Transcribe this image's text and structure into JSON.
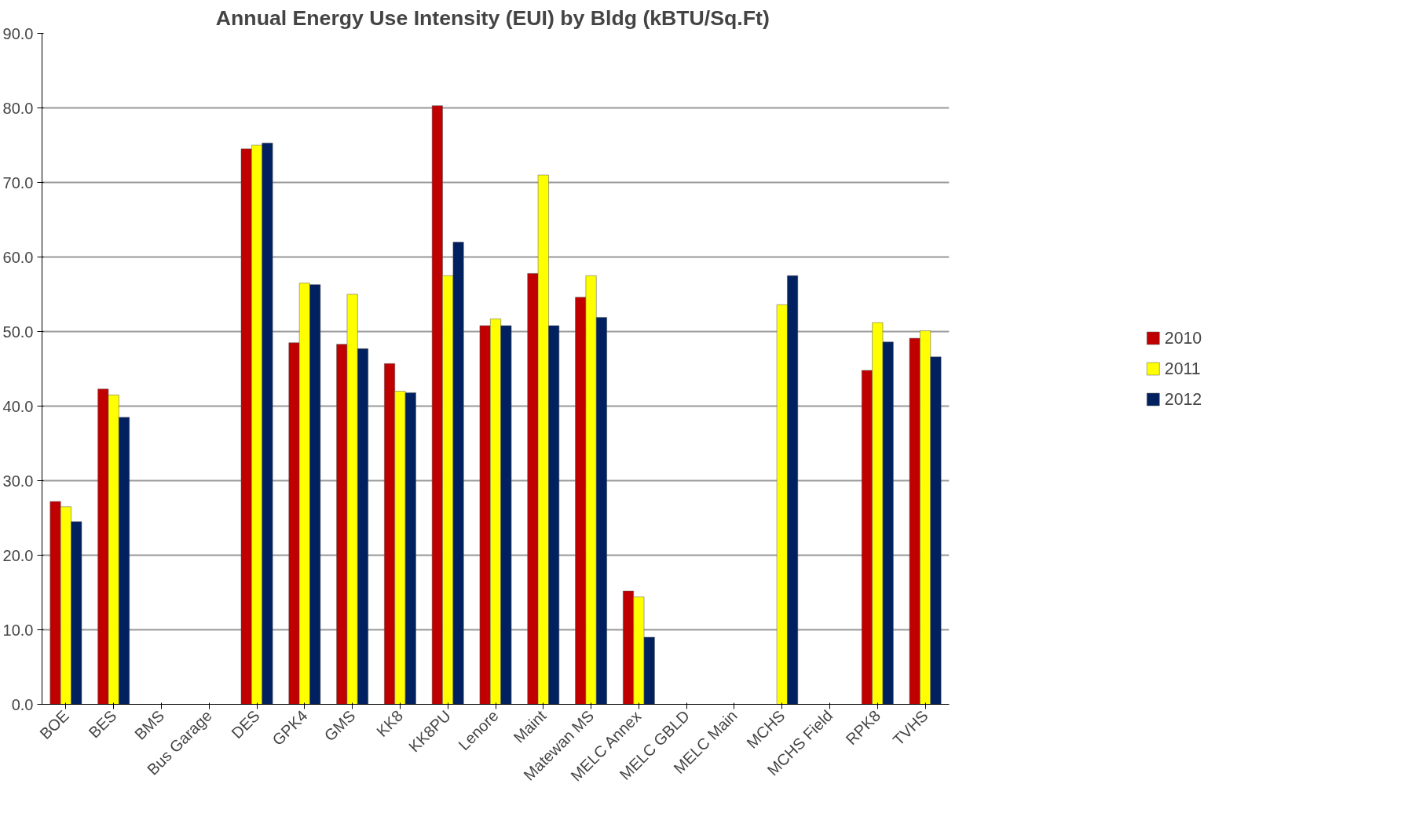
{
  "chart_data": {
    "type": "bar",
    "title": "Annual Energy Use Intensity (EUI)  by Bldg (kBTU/Sq.Ft)",
    "categories": [
      "BOE",
      "BES",
      "BMS",
      "Bus Garage",
      "DES",
      "GPK4",
      "GMS",
      "KK8",
      "KK8PU",
      "Lenore",
      "Maint",
      "Matewan MS",
      "MELC Annex",
      "MELC GBLD",
      "MELC Main",
      "MCHS",
      "MCHS Field",
      "RPK8",
      "TVHS"
    ],
    "series": [
      {
        "name": "2010",
        "color": "#c00000",
        "values": [
          27.2,
          42.3,
          null,
          null,
          74.5,
          48.5,
          48.3,
          45.7,
          80.3,
          50.8,
          57.8,
          54.6,
          15.2,
          null,
          null,
          null,
          null,
          44.8,
          49.1
        ]
      },
      {
        "name": "2011",
        "color": "#ffff00",
        "values": [
          26.5,
          41.5,
          null,
          null,
          75.0,
          56.5,
          55.0,
          42.0,
          57.5,
          51.7,
          71.0,
          57.5,
          14.4,
          null,
          null,
          53.6,
          null,
          51.2,
          50.1
        ]
      },
      {
        "name": "2012",
        "color": "#002060",
        "values": [
          24.5,
          38.5,
          null,
          null,
          75.3,
          56.3,
          47.7,
          41.8,
          62.0,
          50.8,
          50.8,
          51.9,
          9.0,
          null,
          null,
          57.5,
          null,
          48.6,
          46.6
        ]
      }
    ],
    "ylim": [
      0,
      90
    ],
    "yticks": [
      {
        "value": 0,
        "label": "0.0"
      },
      {
        "value": 10,
        "label": "10.0"
      },
      {
        "value": 20,
        "label": "20.0"
      },
      {
        "value": 30,
        "label": "30.0"
      },
      {
        "value": 40,
        "label": "40.0"
      },
      {
        "value": 50,
        "label": "50.0"
      },
      {
        "value": 60,
        "label": "60.0"
      },
      {
        "value": 70,
        "label": "70.0"
      },
      {
        "value": 80,
        "label": "80.0"
      },
      {
        "value": 90,
        "label": "90.0"
      }
    ],
    "grid": "y",
    "legend": "right"
  }
}
